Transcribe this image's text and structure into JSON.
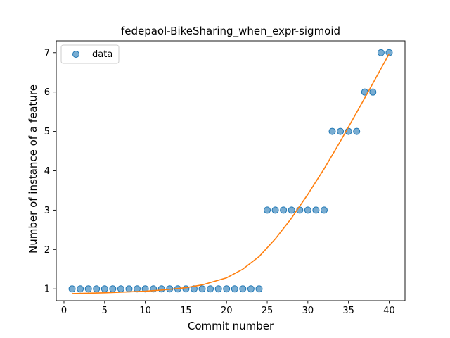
{
  "chart_data": {
    "type": "scatter",
    "title": "fedepaol-BikeSharing_when_expr-sigmoid",
    "xlabel": "Commit number",
    "ylabel": "Number of instance of a feature",
    "xlim": [
      -0.95,
      41.95
    ],
    "ylim": [
      0.7,
      7.3
    ],
    "xticks": [
      0,
      5,
      10,
      15,
      20,
      25,
      30,
      35,
      40
    ],
    "yticks": [
      1,
      2,
      3,
      4,
      5,
      6,
      7
    ],
    "legend": {
      "position": "top-left",
      "entries": [
        "data"
      ]
    },
    "grid": false,
    "colors": {
      "data": "#1f77b4",
      "fit": "#ff7f0e"
    },
    "series": [
      {
        "name": "data",
        "kind": "points",
        "x": [
          1,
          2,
          3,
          4,
          5,
          6,
          7,
          8,
          9,
          10,
          11,
          12,
          13,
          14,
          15,
          16,
          17,
          18,
          19,
          20,
          21,
          22,
          23,
          24,
          25,
          26,
          27,
          28,
          29,
          30,
          31,
          32,
          33,
          34,
          35,
          36,
          37,
          38,
          39,
          40
        ],
        "y": [
          1,
          1,
          1,
          1,
          1,
          1,
          1,
          1,
          1,
          1,
          1,
          1,
          1,
          1,
          1,
          1,
          1,
          1,
          1,
          1,
          1,
          1,
          1,
          1,
          3,
          3,
          3,
          3,
          3,
          3,
          3,
          3,
          5,
          5,
          5,
          5,
          6,
          6,
          7,
          7
        ]
      },
      {
        "kind": "line",
        "x": [
          1,
          5,
          10,
          12,
          15,
          17,
          20,
          22,
          24,
          26,
          28,
          30,
          32,
          34,
          36,
          38,
          40
        ],
        "y": [
          0.88,
          0.9,
          0.94,
          0.97,
          1.03,
          1.1,
          1.28,
          1.5,
          1.82,
          2.27,
          2.8,
          3.4,
          4.05,
          4.75,
          5.48,
          6.22,
          6.97
        ]
      }
    ]
  }
}
